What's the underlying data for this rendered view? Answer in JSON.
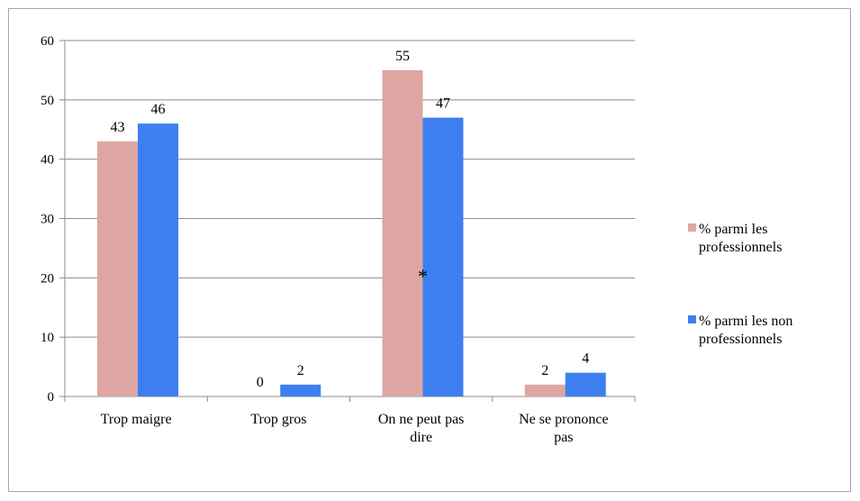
{
  "chart_data": {
    "type": "bar",
    "categories": [
      "Trop maigre",
      "Trop gros",
      "On ne peut pas dire",
      "Ne se prononce pas"
    ],
    "category_label_lines": [
      [
        "Trop maigre"
      ],
      [
        "Trop gros"
      ],
      [
        "On ne peut pas",
        "dire"
      ],
      [
        "Ne se prononce",
        "pas"
      ]
    ],
    "series": [
      {
        "name": "% parmi les professionnels",
        "name_lines": [
          "% parmi les",
          "professionnels"
        ],
        "values": [
          43,
          0,
          55,
          2
        ],
        "color": "#dda6a3"
      },
      {
        "name": "% parmi les non professionnels",
        "name_lines": [
          "% parmi les non",
          "professionnels"
        ],
        "values": [
          46,
          2,
          47,
          4
        ],
        "color": "#3d7ff0"
      }
    ],
    "ylim": [
      0,
      60
    ],
    "yticks": [
      0,
      10,
      20,
      30,
      40,
      50,
      60
    ],
    "grid": true,
    "legend_position": "right",
    "data_labels": true,
    "annotations": [
      {
        "text": "*",
        "category": "On ne peut pas dire",
        "series": 1,
        "y": 21
      }
    ],
    "title": "",
    "xlabel": "",
    "ylabel": ""
  }
}
